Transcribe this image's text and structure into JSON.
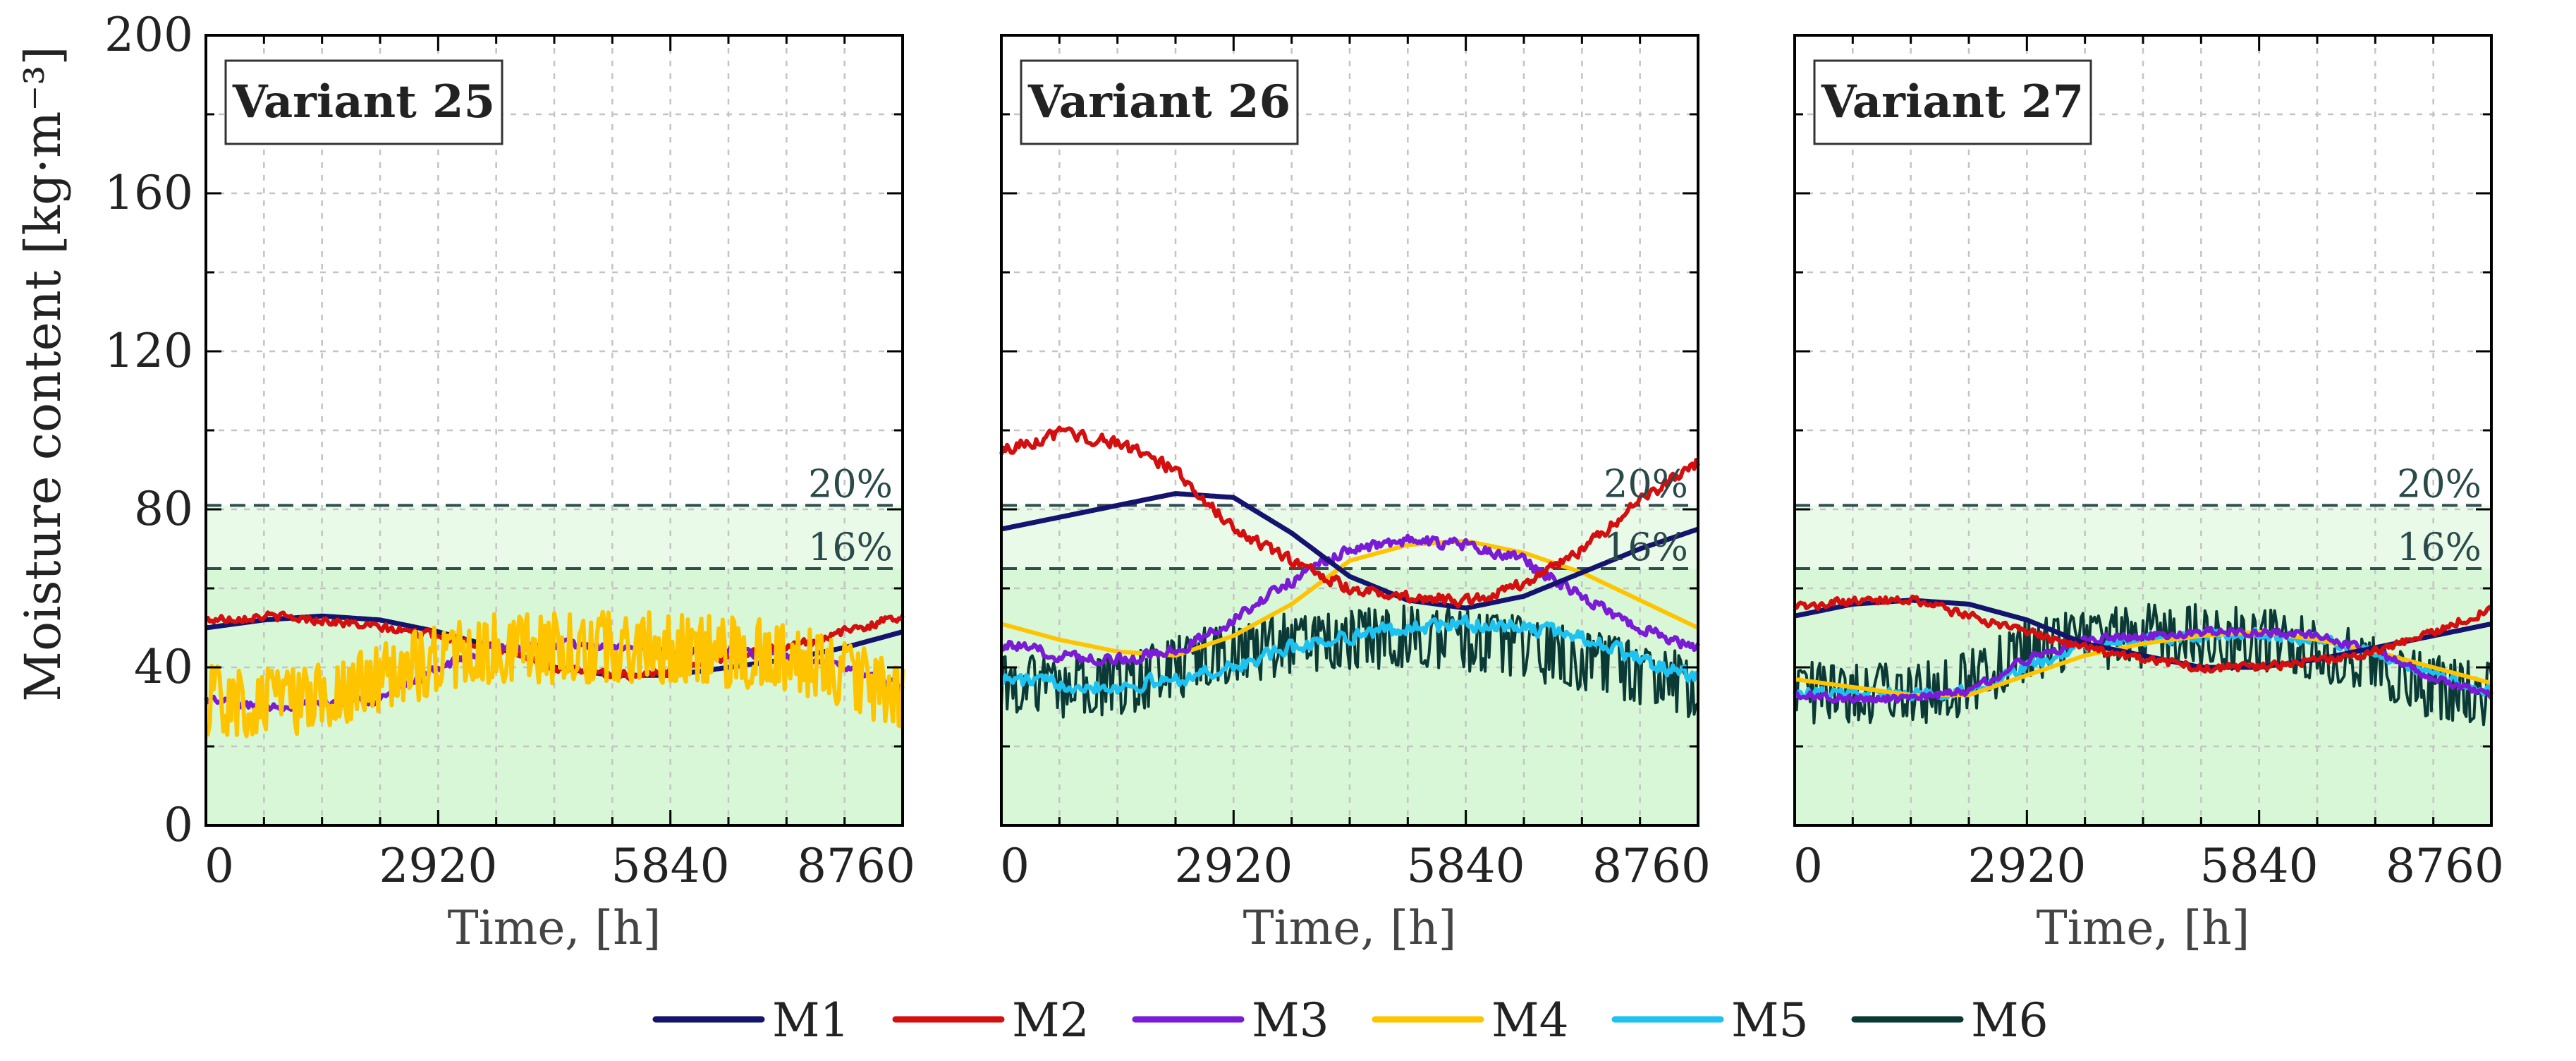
{
  "chart_data": {
    "type": "line",
    "ylabel": "Moisture content [kg·m⁻³]",
    "xlabel": "Time, [h]",
    "xlim": [
      0,
      8760
    ],
    "ylim": [
      0,
      200
    ],
    "x_ticks": [
      0,
      2920,
      5840,
      8760
    ],
    "y_ticks": [
      0,
      40,
      80,
      120,
      160,
      200
    ],
    "grid": true,
    "thresholds": [
      {
        "label": "20%",
        "value": 81,
        "color": "#2f4f4f"
      },
      {
        "label": "16%",
        "value": 65,
        "color": "#2f4f4f"
      }
    ],
    "zones": [
      {
        "from": 0,
        "to": 65,
        "color": "#d7f7d7"
      },
      {
        "from": 65,
        "to": 81,
        "color": "#e9fae9"
      }
    ],
    "legend": [
      {
        "name": "M1",
        "color": "#14146e"
      },
      {
        "name": "M2",
        "color": "#d40f0f"
      },
      {
        "name": "M3",
        "color": "#7a1bd6"
      },
      {
        "name": "M4",
        "color": "#ffc400"
      },
      {
        "name": "M5",
        "color": "#1ec2f0"
      },
      {
        "name": "M6",
        "color": "#0b3a36"
      }
    ],
    "x": [
      0,
      730,
      1460,
      2190,
      2920,
      3650,
      4380,
      5110,
      5840,
      6570,
      7300,
      8030,
      8760
    ],
    "panels": [
      {
        "title": "Variant 25",
        "series": [
          {
            "name": "M1",
            "values": [
              50,
              52,
              53,
              52,
              49,
              45,
              40,
              38,
              38,
              40,
              42,
              45,
              49
            ],
            "noise": 0
          },
          {
            "name": "M2",
            "values": [
              52,
              53,
              52,
              50,
              48,
              45,
              40,
              38,
              39,
              43,
              45,
              49,
              53
            ],
            "noise": 1.5
          },
          {
            "name": "M3",
            "values": [
              32,
              30,
              31,
              32,
              40,
              45,
              46,
              45,
              44,
              44,
              43,
              40,
              35
            ],
            "noise": 1.5
          },
          {
            "name": "M4",
            "values": [
              32,
              31,
              32,
              38,
              42,
              45,
              45,
              45,
              45,
              44,
              43,
              38,
              32
            ],
            "noise": 9
          }
        ]
      },
      {
        "title": "Variant 26",
        "series": [
          {
            "name": "M6",
            "values": [
              36,
              35,
              35,
              40,
              44,
              46,
              47,
              48,
              47,
              45,
              42,
              38,
              35
            ],
            "noise": 8
          },
          {
            "name": "M5",
            "values": [
              37,
              36,
              35,
              37,
              40,
              45,
              48,
              50,
              51,
              50,
              48,
              42,
              37
            ],
            "noise": 2.5
          },
          {
            "name": "M4",
            "values": [
              51,
              47,
              44,
              43,
              48,
              56,
              67,
              71,
              72,
              69,
              64,
              57,
              50
            ],
            "noise": 0
          },
          {
            "name": "M3",
            "values": [
              46,
              43,
              42,
              44,
              52,
              62,
              70,
              72,
              71,
              67,
              58,
              50,
              45
            ],
            "noise": 2
          },
          {
            "name": "M1",
            "values": [
              75,
              78,
              81,
              84,
              83,
              74,
              63,
              57,
              55,
              58,
              64,
              70,
              75
            ],
            "noise": 0
          },
          {
            "name": "M2",
            "values": [
              95,
              99,
              97,
              90,
              75,
              67,
              60,
              58,
              57,
              61,
              70,
              82,
              92
            ],
            "noise": 2
          }
        ]
      },
      {
        "title": "Variant 27",
        "series": [
          {
            "name": "M6",
            "values": [
              34,
              33,
              33,
              36,
              44,
              47,
              48,
              48,
              47,
              45,
              40,
              35,
              33
            ],
            "noise": 8
          },
          {
            "name": "M5",
            "values": [
              34,
              33,
              33,
              34,
              40,
              45,
              47,
              48,
              48,
              47,
              44,
              38,
              34
            ],
            "noise": 2
          },
          {
            "name": "M4",
            "values": [
              37,
              35,
              33,
              33,
              38,
              43,
              46,
              48,
              49,
              47,
              44,
              40,
              36
            ],
            "noise": 0
          },
          {
            "name": "M3",
            "values": [
              33,
              32,
              32,
              34,
              42,
              47,
              48,
              49,
              49,
              48,
              44,
              37,
              33
            ],
            "noise": 1.5
          },
          {
            "name": "M1",
            "values": [
              53,
              56,
              57,
              56,
              52,
              46,
              43,
              40,
              40,
              42,
              45,
              48,
              51
            ],
            "noise": 0
          },
          {
            "name": "M2",
            "values": [
              55,
              57,
              57,
              53,
              49,
              45,
              42,
              40,
              40,
              42,
              44,
              49,
              55
            ],
            "noise": 1.5
          }
        ]
      }
    ]
  }
}
